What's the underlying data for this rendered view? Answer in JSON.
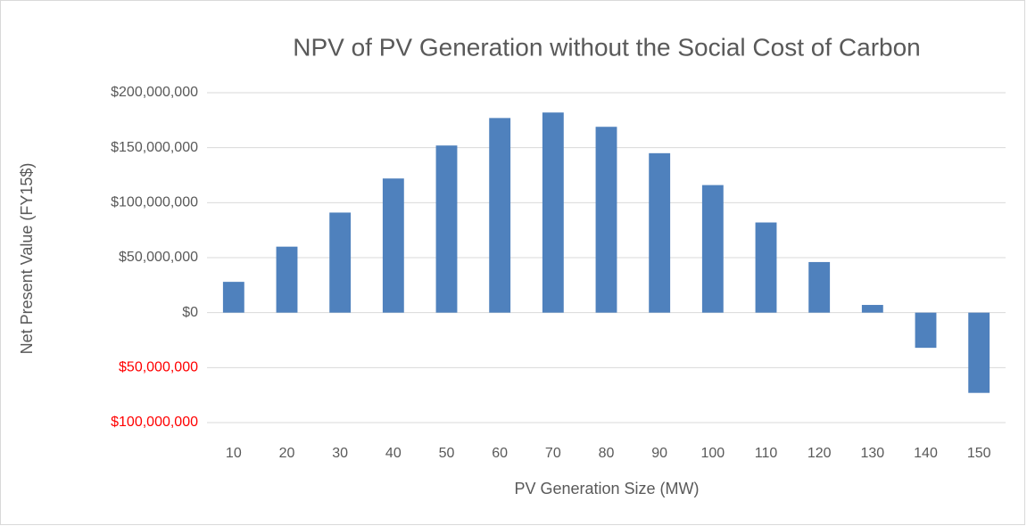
{
  "chart_data": {
    "type": "bar",
    "title": "NPV of PV Generation without the Social Cost of Carbon",
    "x_label": "PV Generation Size (MW)",
    "y_label": "Net Present Value (FY15$)",
    "categories": [
      "10",
      "20",
      "30",
      "40",
      "50",
      "60",
      "70",
      "80",
      "90",
      "100",
      "110",
      "120",
      "130",
      "140",
      "150"
    ],
    "values": [
      28000000,
      60000000,
      91000000,
      122000000,
      152000000,
      177000000,
      182000000,
      169000000,
      145000000,
      116000000,
      82000000,
      46000000,
      7000000,
      -32000000,
      -73000000
    ],
    "color": "#4f81bd",
    "ylim": [
      -100000000,
      200000000
    ],
    "yticks": [
      {
        "value": -100000000,
        "label": "$100,000,000"
      },
      {
        "value": -50000000,
        "label": "$50,000,000"
      },
      {
        "value": 0,
        "label": "$0"
      },
      {
        "value": 50000000,
        "label": "$50,000,000"
      },
      {
        "value": 100000000,
        "label": "$100,000,000"
      },
      {
        "value": 150000000,
        "label": "$150,000,000"
      },
      {
        "value": 200000000,
        "label": "$200,000,000"
      }
    ],
    "negative_tick_color": "#ff0000",
    "grid": true
  }
}
